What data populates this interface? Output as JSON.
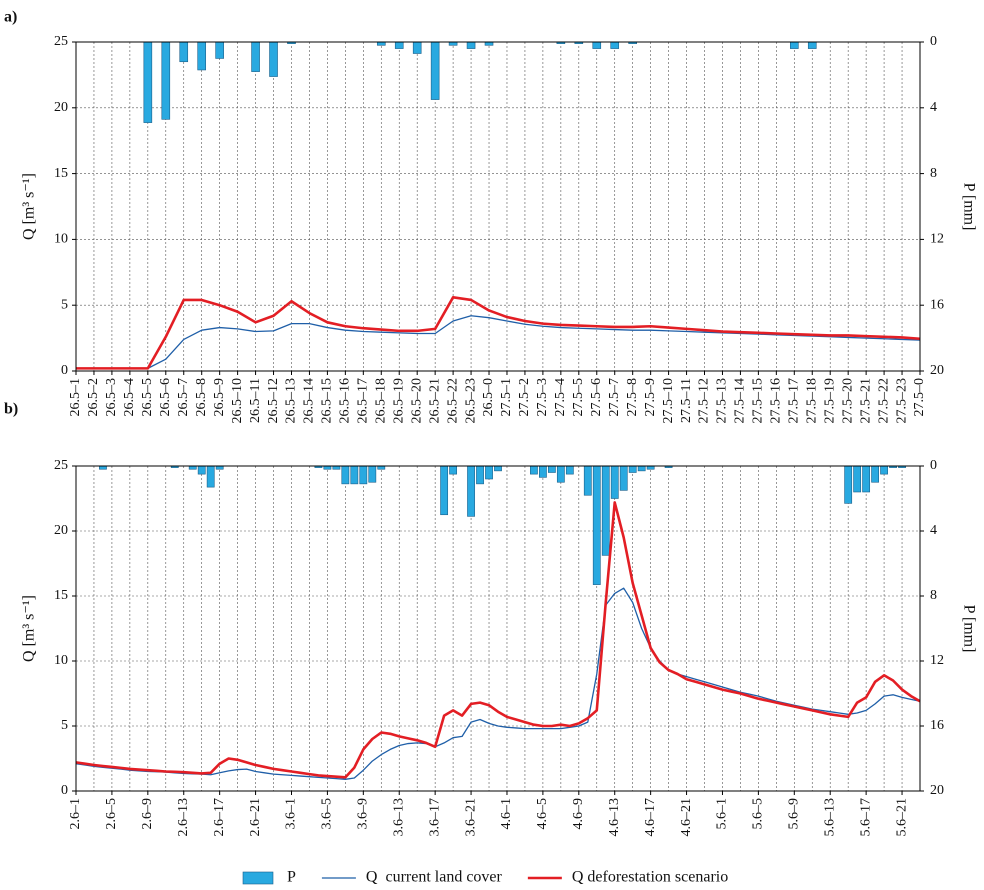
{
  "chart_data": [
    {
      "type": "bar-line",
      "label": "a)",
      "ylabel": "Q [m³ s⁻¹]",
      "y2label": "P [mm]",
      "categories": [
        "26.5–1",
        "26.5–2",
        "26.5–3",
        "26.5–4",
        "26.5–5",
        "26.5–6",
        "26.5–7",
        "26.5–8",
        "26.5–9",
        "26.5–10",
        "26.5–11",
        "26.5–12",
        "26.5–13",
        "26.5–14",
        "26.5–15",
        "26.5–16",
        "26.5–17",
        "26.5–18",
        "26.5–19",
        "26.5–20",
        "26.5–21",
        "26.5–22",
        "26.5–23",
        "26.5–0",
        "27.5–1",
        "27.5–2",
        "27.5–3",
        "27.5–4",
        "27.5–5",
        "27.5–6",
        "27.5–7",
        "27.5–8",
        "27.5–9",
        "27.5–10",
        "27.5–11",
        "27.5–12",
        "27.5–13",
        "27.5–14",
        "27.5–15",
        "27.5–16",
        "27.5–17",
        "27.5–18",
        "27.5–19",
        "27.5–20",
        "27.5–21",
        "27.5–22",
        "27.5–23",
        "27.5–0"
      ],
      "ylim": [
        0,
        25
      ],
      "yticks": [
        0,
        5,
        10,
        15,
        20,
        25
      ],
      "y2lim": [
        0,
        20
      ],
      "y2ticks": [
        0,
        4,
        8,
        12,
        16,
        20
      ],
      "y2_inverted": true,
      "grid": true,
      "series": [
        {
          "type": "bar",
          "axis": "y2",
          "color": "#29a9e0",
          "values": [
            0,
            0,
            0,
            0,
            4.9,
            4.7,
            1.2,
            1.7,
            1.0,
            0,
            1.8,
            2.1,
            0.1,
            0,
            0,
            0,
            0,
            0.2,
            0.4,
            0.7,
            3.5,
            0.2,
            0.4,
            0.2,
            0,
            0,
            0,
            0.1,
            0.1,
            0.4,
            0.4,
            0.1,
            0,
            0,
            0,
            0,
            0,
            0,
            0,
            0,
            0.4,
            0.4,
            0,
            0,
            0,
            0,
            0,
            0
          ]
        },
        {
          "type": "line",
          "color": "#1f5fa8",
          "width": 1.3,
          "values": [
            0.2,
            0.2,
            0.2,
            0.2,
            0.2,
            0.9,
            2.4,
            3.1,
            3.3,
            3.2,
            3.0,
            3.05,
            3.6,
            3.6,
            3.3,
            3.1,
            3.0,
            2.95,
            2.9,
            2.85,
            2.85,
            3.8,
            4.2,
            4.05,
            3.8,
            3.55,
            3.4,
            3.3,
            3.25,
            3.2,
            3.15,
            3.1,
            3.1,
            3.05,
            3.0,
            2.95,
            2.9,
            2.85,
            2.8,
            2.75,
            2.7,
            2.65,
            2.6,
            2.55,
            2.5,
            2.45,
            2.4,
            2.35
          ]
        },
        {
          "type": "line",
          "color": "#e31e24",
          "width": 2.6,
          "values": [
            0.2,
            0.2,
            0.2,
            0.2,
            0.2,
            2.6,
            5.4,
            5.4,
            5.0,
            4.5,
            3.7,
            4.2,
            5.3,
            4.4,
            3.7,
            3.4,
            3.25,
            3.15,
            3.05,
            3.05,
            3.2,
            5.6,
            5.4,
            4.6,
            4.1,
            3.8,
            3.6,
            3.5,
            3.45,
            3.4,
            3.35,
            3.35,
            3.4,
            3.3,
            3.2,
            3.1,
            3.0,
            2.95,
            2.9,
            2.85,
            2.8,
            2.75,
            2.7,
            2.7,
            2.65,
            2.6,
            2.55,
            2.45
          ]
        }
      ]
    },
    {
      "type": "bar-line",
      "label": "b)",
      "ylabel": "Q [m³ s⁻¹]",
      "y2label": "P [mm]",
      "legend": "bottom",
      "categories": [
        "2.6–1",
        null,
        null,
        null,
        "2.6–5",
        null,
        null,
        null,
        "2.6–9",
        null,
        null,
        null,
        "2.6–13",
        null,
        null,
        null,
        "2.6–17",
        null,
        null,
        null,
        "2.6–21",
        null,
        null,
        null,
        "3.6–1",
        null,
        null,
        null,
        "3.6–5",
        null,
        null,
        null,
        "3.6–9",
        null,
        null,
        null,
        "3.6–13",
        null,
        null,
        null,
        "3.6–17",
        null,
        null,
        null,
        "3.6–21",
        null,
        null,
        null,
        "4.6–1",
        null,
        null,
        null,
        "4.6–5",
        null,
        null,
        null,
        "4.6–9",
        null,
        null,
        null,
        "4.6–13",
        null,
        null,
        null,
        "4.6–17",
        null,
        null,
        null,
        "4.6–21",
        null,
        null,
        null,
        "5.6–1",
        null,
        null,
        null,
        "5.6–5",
        null,
        null,
        null,
        "5.6–9",
        null,
        null,
        null,
        "5.6–13",
        null,
        null,
        null,
        "5.6–17",
        null,
        null,
        null,
        "5.6–21",
        null,
        null
      ],
      "ylim": [
        0,
        25
      ],
      "yticks": [
        0,
        5,
        10,
        15,
        20,
        25
      ],
      "y2lim": [
        0,
        20
      ],
      "y2ticks": [
        0,
        4,
        8,
        12,
        16,
        20
      ],
      "y2_inverted": true,
      "grid": true,
      "series": [
        {
          "name": "P",
          "type": "bar",
          "axis": "y2",
          "color": "#29a9e0",
          "values": [
            0,
            0,
            0,
            0.2,
            0,
            0,
            0,
            0,
            0,
            0,
            0,
            0.1,
            0,
            0.2,
            0.5,
            1.3,
            0.2,
            0,
            0,
            0,
            0,
            0,
            0,
            0,
            0,
            0,
            0,
            0.1,
            0.2,
            0.2,
            1.1,
            1.1,
            1.1,
            1.0,
            0.2,
            0,
            0,
            0,
            0,
            0,
            0,
            3.0,
            0.5,
            0,
            3.1,
            1.1,
            0.8,
            0.3,
            0,
            0,
            0,
            0.5,
            0.7,
            0.4,
            1.0,
            0.5,
            0,
            1.8,
            7.3,
            5.5,
            2.0,
            1.5,
            0.4,
            0.3,
            0.2,
            0,
            0.1,
            0,
            0,
            0,
            0,
            0,
            0,
            0,
            0,
            0,
            0,
            0,
            0,
            0,
            0,
            0,
            0,
            0,
            0,
            0,
            2.3,
            1.6,
            1.6,
            1.0,
            0.5,
            0.1,
            0.1,
            0,
            0
          ]
        },
        {
          "name": "Q  current land cover",
          "type": "line",
          "color": "#1f5fa8",
          "width": 1.3,
          "values": [
            2.1,
            2.0,
            1.9,
            1.82,
            1.75,
            1.68,
            1.6,
            1.55,
            1.5,
            1.48,
            1.45,
            1.4,
            1.35,
            1.32,
            1.3,
            1.25,
            1.4,
            1.55,
            1.65,
            1.68,
            1.5,
            1.4,
            1.3,
            1.25,
            1.2,
            1.15,
            1.1,
            1.05,
            1.0,
            0.95,
            0.9,
            1.0,
            1.6,
            2.3,
            2.8,
            3.2,
            3.5,
            3.65,
            3.7,
            3.65,
            3.4,
            3.7,
            4.1,
            4.2,
            5.3,
            5.5,
            5.2,
            5.0,
            4.9,
            4.85,
            4.8,
            4.8,
            4.8,
            4.8,
            4.8,
            4.9,
            5.0,
            5.3,
            9.0,
            14.3,
            15.2,
            15.6,
            14.5,
            12.5,
            11.0,
            10.0,
            9.3,
            9.0,
            8.8,
            8.6,
            8.4,
            8.2,
            8.0,
            7.8,
            7.6,
            7.45,
            7.3,
            7.1,
            6.9,
            6.75,
            6.6,
            6.45,
            6.3,
            6.2,
            6.1,
            6.0,
            5.9,
            6.0,
            6.2,
            6.7,
            7.3,
            7.4,
            7.2,
            7.05,
            6.9
          ]
        },
        {
          "name": "Q deforestation scenario",
          "type": "line",
          "color": "#e31e24",
          "width": 2.6,
          "values": [
            2.2,
            2.1,
            2.0,
            1.92,
            1.85,
            1.78,
            1.7,
            1.65,
            1.6,
            1.55,
            1.5,
            1.48,
            1.45,
            1.4,
            1.35,
            1.4,
            2.1,
            2.5,
            2.4,
            2.2,
            2.0,
            1.85,
            1.7,
            1.6,
            1.5,
            1.4,
            1.3,
            1.2,
            1.15,
            1.1,
            1.05,
            1.8,
            3.2,
            4.0,
            4.5,
            4.4,
            4.2,
            4.05,
            3.9,
            3.7,
            3.4,
            5.8,
            6.2,
            5.8,
            6.7,
            6.8,
            6.6,
            6.1,
            5.7,
            5.5,
            5.3,
            5.1,
            5.0,
            5.0,
            5.1,
            5.0,
            5.2,
            5.6,
            6.2,
            14.5,
            22.2,
            19.5,
            16.0,
            13.5,
            11.0,
            9.9,
            9.3,
            9.0,
            8.6,
            8.4,
            8.2,
            8.0,
            7.8,
            7.65,
            7.5,
            7.3,
            7.1,
            6.95,
            6.8,
            6.65,
            6.5,
            6.35,
            6.2,
            6.05,
            5.9,
            5.8,
            5.7,
            6.8,
            7.2,
            8.4,
            8.9,
            8.5,
            7.8,
            7.3,
            6.9
          ]
        }
      ]
    }
  ]
}
